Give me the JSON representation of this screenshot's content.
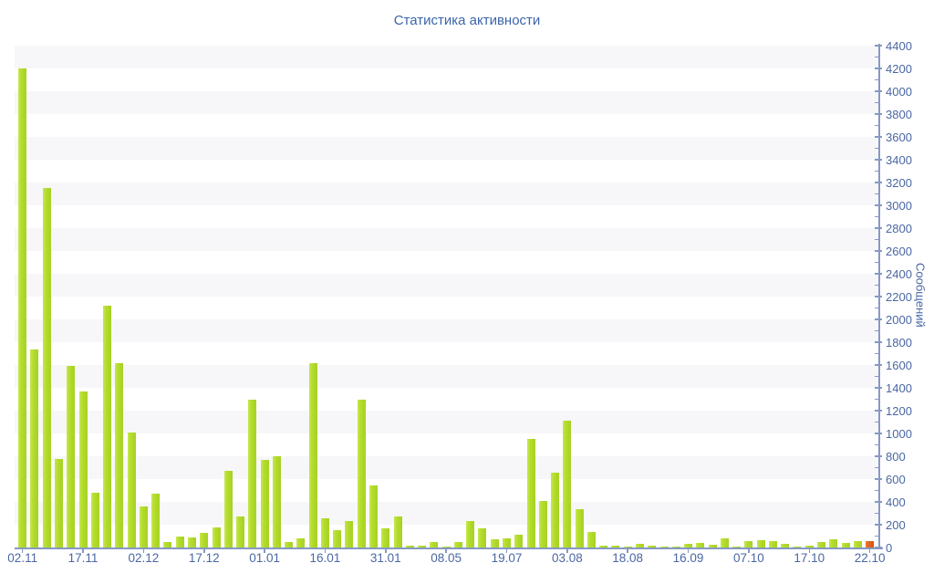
{
  "chart_data": {
    "type": "bar",
    "title": "Статистика активности",
    "ylabel": "Сообщений",
    "xlabel": "",
    "ylim": [
      0,
      4400
    ],
    "y_tick_step": 200,
    "y_minor_tick_step": 100,
    "grid": "horizontal-stripe-bands",
    "legend": "none",
    "x_tick_labels": [
      "02.11",
      "17.11",
      "02.12",
      "17.12",
      "01.01",
      "16.01",
      "31.01",
      "08.05",
      "19.07",
      "03.08",
      "18.08",
      "16.09",
      "07.10",
      "17.10",
      "22.10"
    ],
    "bars_per_label": 5,
    "values": [
      4200,
      1740,
      3150,
      780,
      1590,
      1370,
      480,
      2120,
      1620,
      1010,
      360,
      470,
      45,
      95,
      85,
      125,
      175,
      670,
      270,
      1300,
      770,
      800,
      50,
      80,
      1620,
      260,
      150,
      235,
      1300,
      545,
      170,
      270,
      15,
      20,
      45,
      10,
      50,
      230,
      170,
      75,
      80,
      110,
      955,
      405,
      660,
      1110,
      340,
      140,
      15,
      20,
      12,
      30,
      16,
      10,
      8,
      35,
      42,
      25,
      83,
      10,
      55,
      62,
      55,
      32,
      10,
      18,
      50,
      70,
      38,
      60,
      60
    ],
    "colors": {
      "bar_default": "#b3db2c",
      "bar_last": "#e0601e",
      "stripe_odd": "#f7f7f9",
      "stripe_even": "#ffffff",
      "axis": "#8699c4",
      "tick_text": "#4a67a3",
      "title_text": "#3a64ab"
    }
  }
}
